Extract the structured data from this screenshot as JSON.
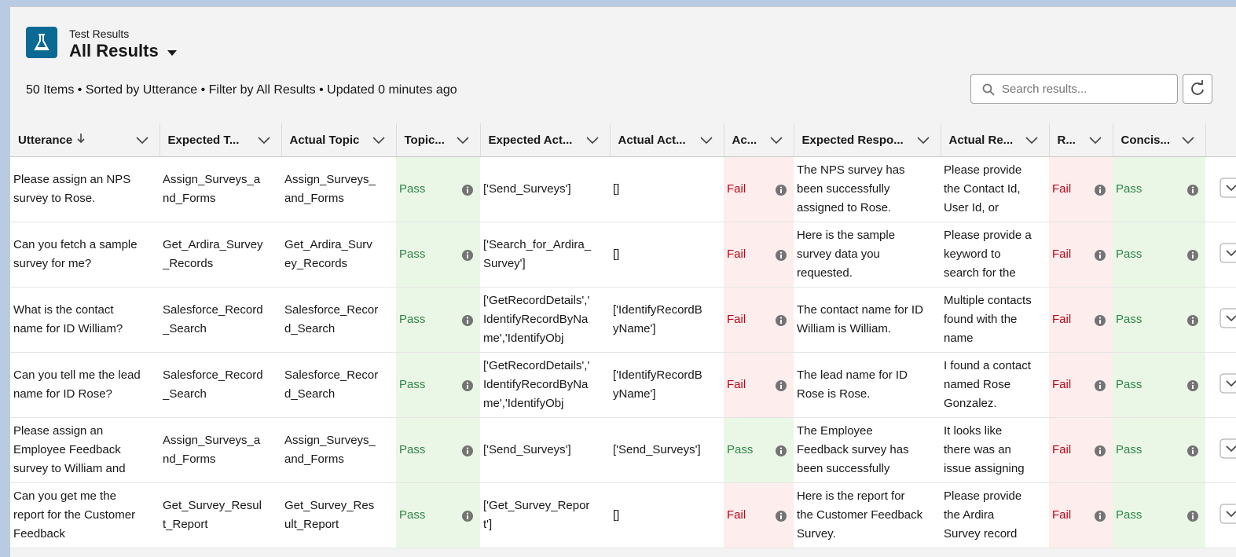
{
  "header": {
    "object": "Test Results",
    "title": "All Results",
    "summary": "50 Items • Sorted by Utterance • Filter by All Results • Updated 0 minutes ago",
    "search_placeholder": "Search results..."
  },
  "statuses": [
    {
      "label": "Pass",
      "color": "#2e844a",
      "background": "#ebf7e6"
    },
    {
      "label": "Fail",
      "color": "#ba0517",
      "background": "#fdeded"
    }
  ],
  "table": {
    "columns": [
      "Utterance",
      "Expected T...",
      "Actual Topic",
      "Topic...",
      "Expected Act...",
      "Actual Act...",
      "Ac...",
      "Expected Respo...",
      "Actual Re...",
      "R...",
      "Concis..."
    ],
    "rows": [
      [
        "Please assign an NPS survey to Rose.",
        "Assign_Surveys_and_Forms",
        "Assign_Surveys_and_Forms",
        "Pass",
        "['Send_Surveys']",
        "[]",
        "Fail",
        "The NPS survey has been successfully assigned to Rose.",
        "Please provide the Contact Id, User Id, or",
        "Fail",
        "Pass"
      ],
      [
        "Can you fetch a sample survey for me?",
        "Get_Ardira_Survey_Records",
        "Get_Ardira_Survey_Records",
        "Pass",
        "['Search_for_Ardira_Survey']",
        "[]",
        "Fail",
        "Here is the sample survey data you requested.",
        "Please provide a keyword to search for the",
        "Fail",
        "Pass"
      ],
      [
        "What is the contact name for ID William?",
        "Salesforce_Record_Search",
        "Salesforce_Record_Search",
        "Pass",
        "['GetRecordDetails','IdentifyRecordByName','IdentifyObj",
        "['IdentifyRecordByName']",
        "Fail",
        "The contact name for ID William is William.",
        "Multiple contacts found with the name",
        "Fail",
        "Pass"
      ],
      [
        "Can you tell me the lead name for ID Rose?",
        "Salesforce_Record_Search",
        "Salesforce_Record_Search",
        "Pass",
        "['GetRecordDetails','IdentifyRecordByName','IdentifyObj",
        "['IdentifyRecordByName']",
        "Fail",
        "The lead name for ID Rose is Rose.",
        "I found a contact named Rose Gonzalez.",
        "Fail",
        "Pass"
      ],
      [
        "Please assign an Employee Feedback survey to William and",
        "Assign_Surveys_and_Forms",
        "Assign_Surveys_and_Forms",
        "Pass",
        "['Send_Surveys']",
        "['Send_Surveys']",
        "Pass",
        "The Employee Feedback survey has been successfully",
        "It looks like there was an issue assigning",
        "Fail",
        "Pass"
      ],
      [
        "Can you get me the report for the Customer Feedback",
        "Get_Survey_Result_Report",
        "Get_Survey_Result_Report",
        "Pass",
        "['Get_Survey_Report']",
        "[]",
        "Fail",
        "Here is the report for the Customer Feedback Survey.",
        "Please provide the Ardira Survey record",
        "Fail",
        "Pass"
      ]
    ]
  }
}
